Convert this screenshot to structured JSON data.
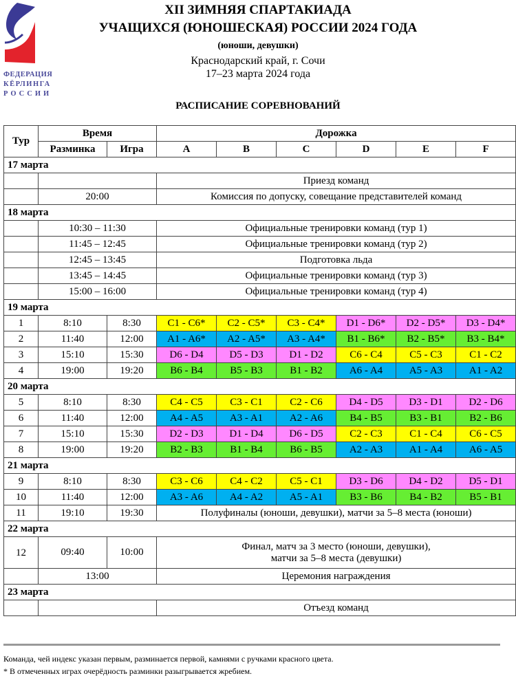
{
  "logo": {
    "lines": [
      "ФЕДЕРАЦИЯ",
      "КЁРЛИНГА",
      "РОССИИ"
    ],
    "colors": {
      "blue": "#3b3a95",
      "red": "#e3232c"
    }
  },
  "header": {
    "title1": "XII ЗИМНЯЯ СПАРТАКИАДА",
    "title2": "УЧАЩИХСЯ (ЮНОШЕСКАЯ) РОССИИ 2024 ГОДА",
    "subtitle": "(юноши, девушки)",
    "location": "Краснодарский край, г. Сочи",
    "dates": "17–23 марта 2024 года",
    "schedule_title": "РАСПИСАНИЕ СОРЕВНОВАНИЙ"
  },
  "table": {
    "headers": {
      "round": "Тур",
      "time": "Время",
      "warmup": "Разминка",
      "game": "Игра",
      "sheet": "Дорожка",
      "sheets": [
        "A",
        "B",
        "C",
        "D",
        "E",
        "F"
      ]
    },
    "group_colors": {
      "A": "#00b0f0",
      "B": "#66ee33",
      "C": "#ffff00",
      "D": "#ff88ff"
    },
    "rows": [
      {
        "type": "day",
        "label": "17 марта"
      },
      {
        "type": "event",
        "round": "",
        "time": "",
        "text": "Приезд команд"
      },
      {
        "type": "event",
        "round": "",
        "time": "20:00",
        "text": "Комиссия по допуску, совещание представителей команд"
      },
      {
        "type": "day",
        "label": "18 марта"
      },
      {
        "type": "event",
        "round": "",
        "time": "10:30 – 11:30",
        "text": "Официальные тренировки команд (тур 1)"
      },
      {
        "type": "event",
        "round": "",
        "time": "11:45 – 12:45",
        "text": "Официальные тренировки команд (тур 2)"
      },
      {
        "type": "event",
        "round": "",
        "time": "12:45 – 13:45",
        "text": "Подготовка льда"
      },
      {
        "type": "event",
        "round": "",
        "time": "13:45 – 14:45",
        "text": "Официальные тренировки команд (тур 3)"
      },
      {
        "type": "event",
        "round": "",
        "time": "15:00 – 16:00",
        "text": "Официальные тренировки команд (тур 4)"
      },
      {
        "type": "day",
        "label": "19 марта"
      },
      {
        "type": "games",
        "round": "1",
        "warmup": "8:10",
        "game": "8:30",
        "matches": [
          "C1 - C6*",
          "C2 - C5*",
          "C3 - C4*",
          "D1 - D6*",
          "D2 - D5*",
          "D3 - D4*"
        ]
      },
      {
        "type": "games",
        "round": "2",
        "warmup": "11:40",
        "game": "12:00",
        "matches": [
          "A1 - A6*",
          "A2 - A5*",
          "A3 - A4*",
          "B1 - B6*",
          "B2 - B5*",
          "B3 - B4*"
        ]
      },
      {
        "type": "games",
        "round": "3",
        "warmup": "15:10",
        "game": "15:30",
        "matches": [
          "D6 - D4",
          "D5 - D3",
          "D1 - D2",
          "C6 - C4",
          "C5 - C3",
          "C1 - C2"
        ]
      },
      {
        "type": "games",
        "round": "4",
        "warmup": "19:00",
        "game": "19:20",
        "matches": [
          "B6 - B4",
          "B5 - B3",
          "B1 - B2",
          "A6 - A4",
          "A5 - A3",
          "A1 - A2"
        ]
      },
      {
        "type": "day",
        "label": "20 марта"
      },
      {
        "type": "games",
        "round": "5",
        "warmup": "8:10",
        "game": "8:30",
        "matches": [
          "C4 - C5",
          "C3 - C1",
          "C2 - C6",
          "D4 - D5",
          "D3 - D1",
          "D2 - D6"
        ]
      },
      {
        "type": "games",
        "round": "6",
        "warmup": "11:40",
        "game": "12:00",
        "matches": [
          "A4 - A5",
          "A3 - A1",
          "A2 - A6",
          "B4 - B5",
          "B3 - B1",
          "B2 - B6"
        ]
      },
      {
        "type": "games",
        "round": "7",
        "warmup": "15:10",
        "game": "15:30",
        "matches": [
          "D2 - D3",
          "D1 - D4",
          "D6 - D5",
          "C2 - C3",
          "C1 - C4",
          "C6 - C5"
        ]
      },
      {
        "type": "games",
        "round": "8",
        "warmup": "19:00",
        "game": "19:20",
        "matches": [
          "B2 - B3",
          "B1 - B4",
          "B6 - B5",
          "A2 - A3",
          "A1 - A4",
          "A6 - A5"
        ]
      },
      {
        "type": "day",
        "label": "21 марта"
      },
      {
        "type": "games",
        "round": "9",
        "warmup": "8:10",
        "game": "8:30",
        "matches": [
          "C3 - C6",
          "C4 - C2",
          "C5 - C1",
          "D3 - D6",
          "D4 - D2",
          "D5 - D1"
        ]
      },
      {
        "type": "games",
        "round": "10",
        "warmup": "11:40",
        "game": "12:00",
        "matches": [
          "A3 - A6",
          "A4 - A2",
          "A5 - A1",
          "B3 - B6",
          "B4 - B2",
          "B5 - B1"
        ]
      },
      {
        "type": "event2",
        "round": "11",
        "warmup": "19:10",
        "game": "19:30",
        "text": "Полуфиналы (юноши, девушки), матчи за 5–8 места (юноши)"
      },
      {
        "type": "day",
        "label": "22 марта"
      },
      {
        "type": "event2",
        "round": "12",
        "warmup": "09:40",
        "game": "10:00",
        "text": "Финал, матч за 3 место (юноши, девушки),",
        "text2": "матчи за 5–8 места (девушки)"
      },
      {
        "type": "event",
        "round": "",
        "time": "13:00",
        "text": "Церемония награждения"
      },
      {
        "type": "day",
        "label": "23 марта"
      },
      {
        "type": "event3",
        "round": "",
        "warmup": "",
        "text": "Отъезд команд"
      }
    ]
  },
  "footer": {
    "note1": "Команда, чей индекс указан первым, разминается первой, камнями с ручками красного цвета.",
    "note2": "* В отмеченных играх очерёдность разминки разыгрывается жребием."
  }
}
